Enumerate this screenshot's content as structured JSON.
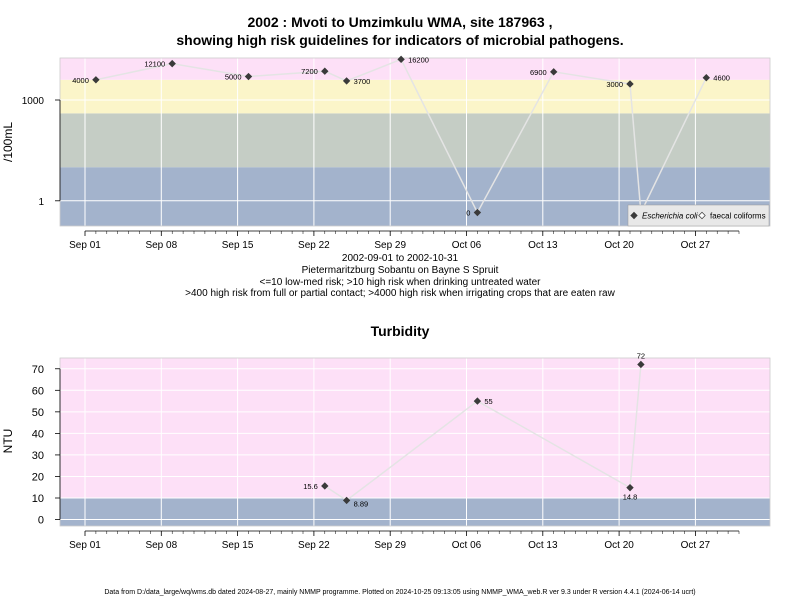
{
  "chart_data": [
    {
      "type": "line",
      "title_line1": "2002 : Mvoti to Umzimkulu WMA, site 187963 ,",
      "title_line2": "showing high risk guidelines for indicators of microbial pathogens.",
      "ylabel": "/100mL",
      "y_scale": "log10",
      "ylim_log10": [
        -0.75,
        4.25
      ],
      "yticks": [
        1,
        1000
      ],
      "ytick_labels": [
        "1",
        "1000"
      ],
      "x_ticks": [
        "Sep 01",
        "Sep 08",
        "Sep 15",
        "Sep 22",
        "Sep 29",
        "Oct 06",
        "Oct 13",
        "Oct 20",
        "Oct 27"
      ],
      "grid": true,
      "risk_bands": [
        {
          "from_log10": -0.75,
          "to_log10": 1.0,
          "color": "#a3b3cc"
        },
        {
          "from_log10": 1.0,
          "to_log10": 2.602,
          "color": "#c5cdc5"
        },
        {
          "from_log10": 2.602,
          "to_log10": 3.602,
          "color": "#fbf5c9"
        },
        {
          "from_log10": 3.602,
          "to_log10": 4.25,
          "color": "#fde0f7"
        }
      ],
      "series": [
        {
          "name": "Escherichia coli",
          "marker": "filled-diamond",
          "points": [
            {
              "date": "2002-09-02",
              "value": 4000,
              "label": "4000"
            },
            {
              "date": "2002-09-09",
              "value": 12100,
              "label": "12100"
            },
            {
              "date": "2002-09-16",
              "value": 5000,
              "label": "5000"
            },
            {
              "date": "2002-09-23",
              "value": 7200,
              "label": "7200"
            },
            {
              "date": "2002-09-25",
              "value": 3700,
              "label": "3700"
            },
            {
              "date": "2002-09-30",
              "value": 16200,
              "label": "16200"
            },
            {
              "date": "2002-10-07",
              "value": 0,
              "label": "0"
            },
            {
              "date": "2002-10-14",
              "value": 6900,
              "label": "6900"
            },
            {
              "date": "2002-10-21",
              "value": 3000,
              "label": "3000"
            },
            {
              "date": "2002-10-22",
              "value": 0,
              "label": "0"
            },
            {
              "date": "2002-10-28",
              "value": 4600,
              "label": "4600"
            }
          ]
        }
      ],
      "legend": {
        "placement": "bottom-right",
        "items": [
          {
            "label": "Escherichia coli",
            "italic": true,
            "marker": "filled-diamond"
          },
          {
            "label": "faecal coliforms",
            "italic": false,
            "marker": "open-diamond"
          }
        ]
      },
      "caption_lines": [
        "2002-09-01 to 2002-10-31",
        "Pietermaritzburg Sobantu on Bayne S Spruit",
        "<=10 low-med risk; >10 high risk when drinking untreated water",
        ">400 high risk from full or partial contact; >4000 high risk when irrigating crops that are eaten raw"
      ]
    },
    {
      "type": "line",
      "title": "Turbidity",
      "ylabel": "NTU",
      "ylim": [
        -3,
        75
      ],
      "yticks": [
        0,
        10,
        20,
        30,
        40,
        50,
        60,
        70
      ],
      "x_ticks": [
        "Sep 01",
        "Sep 08",
        "Sep 15",
        "Sep 22",
        "Sep 29",
        "Oct 06",
        "Oct 13",
        "Oct 20",
        "Oct 27"
      ],
      "grid": true,
      "risk_bands": [
        {
          "from": -3,
          "to": 10,
          "color": "#a3b3cc"
        },
        {
          "from": 10,
          "to": 75,
          "color": "#fde0f7"
        }
      ],
      "series": [
        {
          "name": "Turbidity",
          "marker": "filled-diamond",
          "points": [
            {
              "date": "2002-09-23",
              "value": 15.6,
              "label": "15.6"
            },
            {
              "date": "2002-09-25",
              "value": 8.89,
              "label": "8.89"
            },
            {
              "date": "2002-10-07",
              "value": 55,
              "label": "55"
            },
            {
              "date": "2002-10-21",
              "value": 14.8,
              "label": "14.8"
            },
            {
              "date": "2002-10-22",
              "value": 72,
              "label": "72"
            }
          ]
        }
      ]
    }
  ],
  "footer": "Data from D:/data_large/wq/wms.db dated 2024-08-27, mainly NMMP programme. Plotted on 2024-10-25 09:13:05 using NMMP_WMA_web.R ver 9.3 under R version 4.4.1 (2024-06-14 ucrt)"
}
